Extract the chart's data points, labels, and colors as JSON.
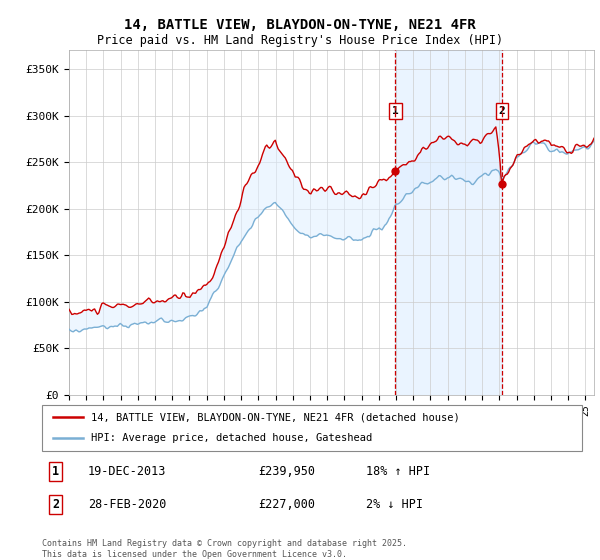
{
  "title": "14, BATTLE VIEW, BLAYDON-ON-TYNE, NE21 4FR",
  "subtitle": "Price paid vs. HM Land Registry's House Price Index (HPI)",
  "ylabel_ticks": [
    "£0",
    "£50K",
    "£100K",
    "£150K",
    "£200K",
    "£250K",
    "£300K",
    "£350K"
  ],
  "ytick_values": [
    0,
    50000,
    100000,
    150000,
    200000,
    250000,
    300000,
    350000
  ],
  "ylim": [
    0,
    370000
  ],
  "xlim_start": 1995.0,
  "xlim_end": 2025.5,
  "legend_line1": "14, BATTLE VIEW, BLAYDON-ON-TYNE, NE21 4FR (detached house)",
  "legend_line2": "HPI: Average price, detached house, Gateshead",
  "point1_label": "19-DEC-2013",
  "point1_price": "£239,950",
  "point1_pct": "18% ↑ HPI",
  "point1_x": 2013.96,
  "point1_y": 239950,
  "point2_label": "28-FEB-2020",
  "point2_price": "£227,000",
  "point2_pct": "2% ↓ HPI",
  "point2_x": 2020.16,
  "point2_y": 227000,
  "footer": "Contains HM Land Registry data © Crown copyright and database right 2025.\nThis data is licensed under the Open Government Licence v3.0.",
  "red_color": "#cc0000",
  "blue_color": "#7aafd4",
  "shading_color": "#ddeeff",
  "background_color": "#ffffff",
  "grid_color": "#cccccc"
}
